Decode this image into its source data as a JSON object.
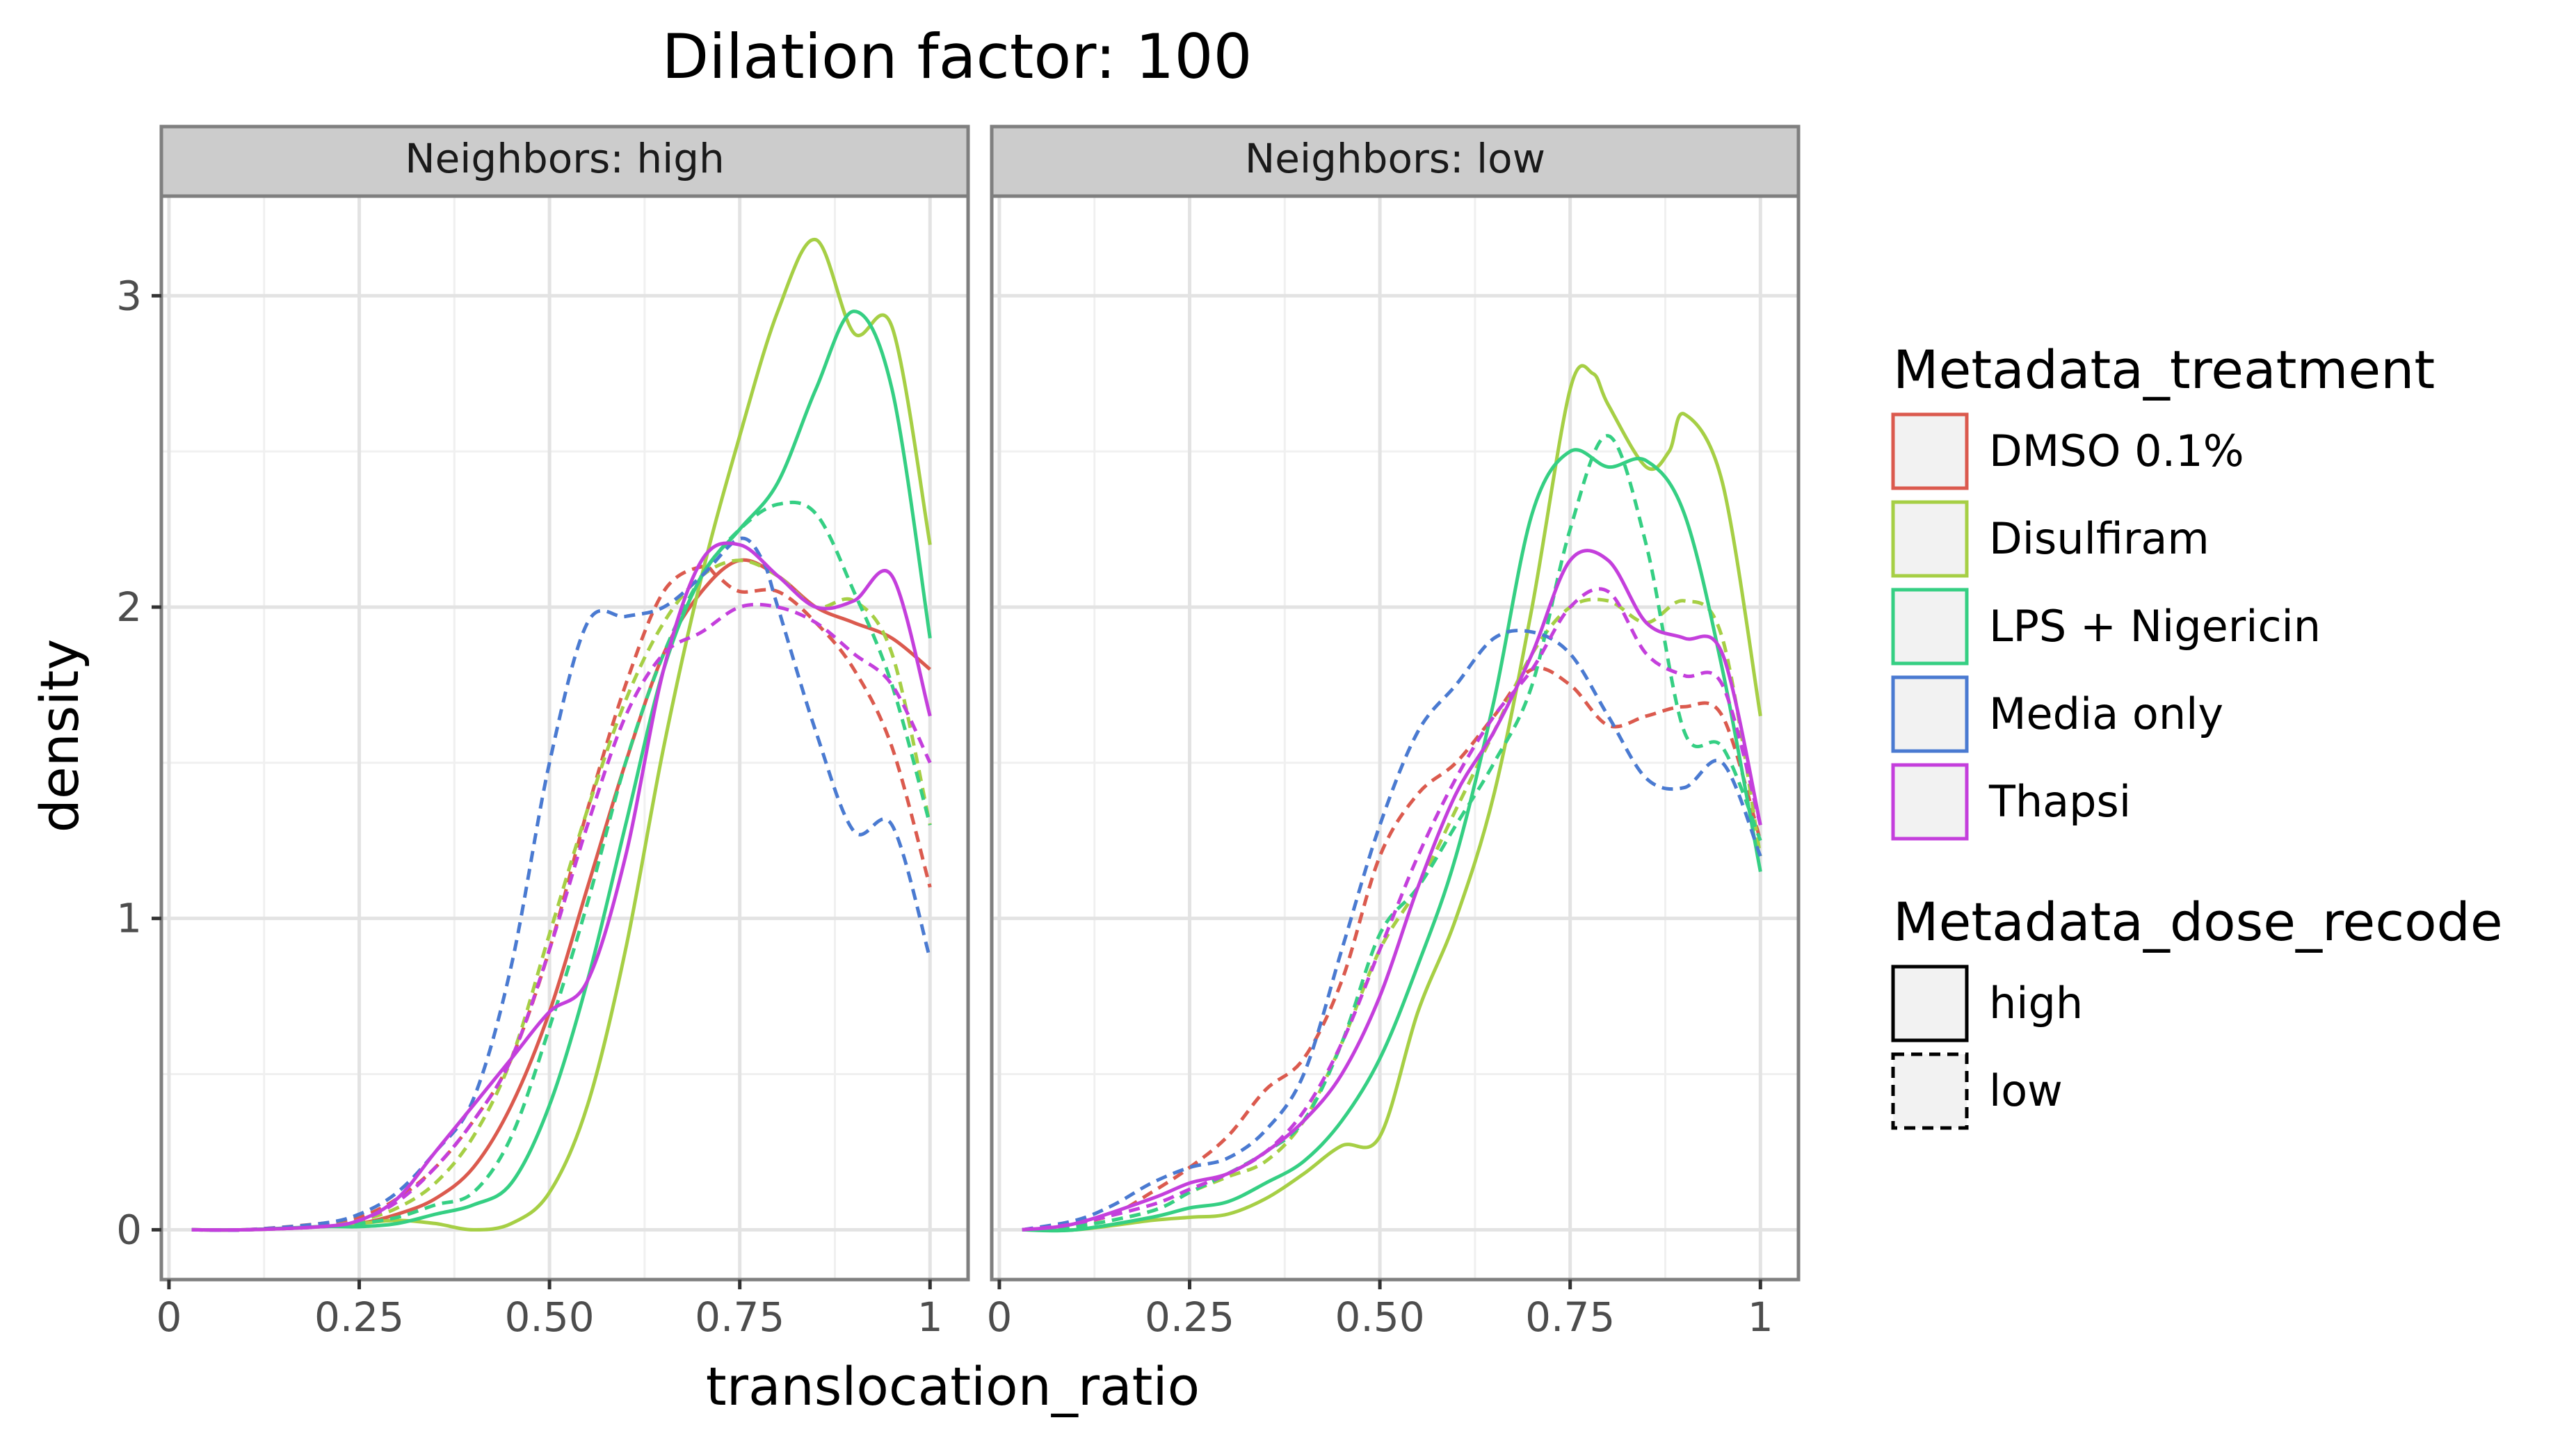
{
  "title": "Dilation factor: 100",
  "chart_data": {
    "type": "line",
    "title": "Dilation factor: 100",
    "xlabel": "translocation_ratio",
    "ylabel": "density",
    "xlim": [
      -0.01,
      1.05
    ],
    "ylim": [
      -0.16,
      3.32
    ],
    "x_ticks": [
      0,
      0.25,
      0.5,
      0.75,
      1
    ],
    "x_tick_labels": [
      "0",
      "0.25",
      "0.50",
      "0.75",
      "1"
    ],
    "y_ticks": [
      0,
      1,
      2,
      3
    ],
    "y_tick_labels": [
      "0",
      "1",
      "2",
      "3"
    ],
    "grid": true,
    "legend_position": "right",
    "facets": [
      "Neighbors: high",
      "Neighbors: low"
    ],
    "legend": {
      "color_title": "Metadata_treatment",
      "color_entries": [
        {
          "label": "DMSO 0.1%",
          "color": "#db5a4e"
        },
        {
          "label": "Disulfiram",
          "color": "#a6cf45"
        },
        {
          "label": "LPS + Nigericin",
          "color": "#35cf83"
        },
        {
          "label": "Media only",
          "color": "#4a7ad1"
        },
        {
          "label": "Thapsi",
          "color": "#c43fdc"
        }
      ],
      "linetype_title": "Metadata_dose_recode",
      "linetype_entries": [
        {
          "label": "high",
          "dash": "solid"
        },
        {
          "label": "low",
          "dash": "dashed"
        }
      ]
    },
    "panels": [
      {
        "facet": "Neighbors: high",
        "series": [
          {
            "treatment": "DMSO 0.1%",
            "dose": "high",
            "x": [
              0.03,
              0.1,
              0.2,
              0.25,
              0.3,
              0.35,
              0.4,
              0.45,
              0.5,
              0.55,
              0.6,
              0.65,
              0.7,
              0.75,
              0.8,
              0.85,
              0.9,
              0.95,
              1.0
            ],
            "y": [
              0,
              0,
              0.01,
              0.02,
              0.05,
              0.1,
              0.2,
              0.4,
              0.7,
              1.1,
              1.5,
              1.85,
              2.05,
              2.15,
              2.1,
              2.0,
              1.95,
              1.9,
              1.8
            ]
          },
          {
            "treatment": "DMSO 0.1%",
            "dose": "low",
            "x": [
              0.03,
              0.1,
              0.2,
              0.25,
              0.3,
              0.35,
              0.4,
              0.45,
              0.5,
              0.55,
              0.6,
              0.65,
              0.7,
              0.72,
              0.75,
              0.8,
              0.85,
              0.9,
              0.95,
              1.0
            ],
            "y": [
              0,
              0,
              0.02,
              0.04,
              0.1,
              0.2,
              0.35,
              0.55,
              0.9,
              1.35,
              1.75,
              2.05,
              2.13,
              2.1,
              2.05,
              2.05,
              1.95,
              1.8,
              1.55,
              1.1
            ]
          },
          {
            "treatment": "Disulfiram",
            "dose": "high",
            "x": [
              0.03,
              0.1,
              0.2,
              0.25,
              0.3,
              0.35,
              0.4,
              0.45,
              0.5,
              0.55,
              0.6,
              0.65,
              0.7,
              0.75,
              0.8,
              0.85,
              0.9,
              0.95,
              1.0
            ],
            "y": [
              0,
              0,
              0.01,
              0.02,
              0.03,
              0.02,
              0.0,
              0.02,
              0.12,
              0.4,
              0.9,
              1.55,
              2.1,
              2.55,
              2.95,
              3.18,
              2.88,
              2.9,
              2.2
            ]
          },
          {
            "treatment": "Disulfiram",
            "dose": "low",
            "x": [
              0.03,
              0.1,
              0.2,
              0.25,
              0.3,
              0.35,
              0.4,
              0.45,
              0.5,
              0.55,
              0.6,
              0.65,
              0.7,
              0.75,
              0.8,
              0.85,
              0.9,
              0.95,
              1.0
            ],
            "y": [
              0,
              0,
              0.01,
              0.03,
              0.07,
              0.15,
              0.3,
              0.55,
              0.95,
              1.35,
              1.7,
              1.95,
              2.1,
              2.15,
              2.1,
              2.0,
              2.02,
              1.85,
              1.3
            ]
          },
          {
            "treatment": "LPS + Nigericin",
            "dose": "high",
            "x": [
              0.03,
              0.1,
              0.2,
              0.25,
              0.3,
              0.35,
              0.4,
              0.45,
              0.5,
              0.55,
              0.6,
              0.65,
              0.7,
              0.75,
              0.8,
              0.85,
              0.9,
              0.95,
              1.0
            ],
            "y": [
              0,
              0,
              0.01,
              0.01,
              0.02,
              0.05,
              0.08,
              0.15,
              0.4,
              0.8,
              1.3,
              1.8,
              2.1,
              2.25,
              2.4,
              2.7,
              2.95,
              2.7,
              1.9
            ]
          },
          {
            "treatment": "LPS + Nigericin",
            "dose": "low",
            "x": [
              0.03,
              0.1,
              0.2,
              0.25,
              0.3,
              0.35,
              0.4,
              0.45,
              0.5,
              0.55,
              0.6,
              0.65,
              0.7,
              0.75,
              0.8,
              0.85,
              0.9,
              0.95,
              1.0
            ],
            "y": [
              0,
              0,
              0.01,
              0.02,
              0.04,
              0.08,
              0.12,
              0.3,
              0.65,
              1.05,
              1.5,
              1.85,
              2.1,
              2.25,
              2.33,
              2.3,
              2.05,
              1.75,
              1.3
            ]
          },
          {
            "treatment": "Media only",
            "dose": "low",
            "x": [
              0.03,
              0.1,
              0.2,
              0.25,
              0.3,
              0.35,
              0.4,
              0.45,
              0.5,
              0.55,
              0.6,
              0.65,
              0.7,
              0.75,
              0.78,
              0.8,
              0.85,
              0.9,
              0.95,
              1.0
            ],
            "y": [
              0,
              0,
              0.02,
              0.05,
              0.12,
              0.25,
              0.42,
              0.85,
              1.5,
              1.95,
              1.97,
              2.0,
              2.1,
              2.22,
              2.15,
              2.0,
              1.6,
              1.28,
              1.3,
              0.87
            ]
          },
          {
            "treatment": "Thapsi",
            "dose": "high",
            "x": [
              0.03,
              0.1,
              0.2,
              0.25,
              0.3,
              0.35,
              0.4,
              0.45,
              0.5,
              0.55,
              0.6,
              0.65,
              0.7,
              0.75,
              0.8,
              0.85,
              0.9,
              0.95,
              1.0
            ],
            "y": [
              0,
              0,
              0.01,
              0.03,
              0.1,
              0.25,
              0.4,
              0.55,
              0.7,
              0.8,
              1.2,
              1.8,
              2.15,
              2.2,
              2.1,
              2.0,
              2.02,
              2.1,
              1.65
            ]
          },
          {
            "treatment": "Thapsi",
            "dose": "low",
            "x": [
              0.03,
              0.1,
              0.2,
              0.25,
              0.3,
              0.35,
              0.4,
              0.45,
              0.5,
              0.55,
              0.6,
              0.65,
              0.7,
              0.75,
              0.8,
              0.85,
              0.9,
              0.95,
              1.0
            ],
            "y": [
              0,
              0,
              0.01,
              0.03,
              0.09,
              0.2,
              0.35,
              0.55,
              0.9,
              1.3,
              1.65,
              1.85,
              1.92,
              2.0,
              2.0,
              1.95,
              1.85,
              1.75,
              1.5
            ]
          }
        ]
      },
      {
        "facet": "Neighbors: low",
        "series": [
          {
            "treatment": "DMSO 0.1%",
            "dose": "low",
            "x": [
              0.03,
              0.1,
              0.15,
              0.2,
              0.25,
              0.3,
              0.35,
              0.4,
              0.45,
              0.5,
              0.55,
              0.6,
              0.65,
              0.7,
              0.75,
              0.8,
              0.85,
              0.9,
              0.95,
              1.0
            ],
            "y": [
              0,
              0.02,
              0.05,
              0.12,
              0.2,
              0.3,
              0.45,
              0.55,
              0.8,
              1.2,
              1.4,
              1.5,
              1.65,
              1.8,
              1.75,
              1.62,
              1.65,
              1.68,
              1.65,
              1.25
            ]
          },
          {
            "treatment": "Disulfiram",
            "dose": "high",
            "x": [
              0.03,
              0.1,
              0.2,
              0.25,
              0.3,
              0.35,
              0.4,
              0.45,
              0.5,
              0.55,
              0.6,
              0.65,
              0.7,
              0.75,
              0.78,
              0.8,
              0.85,
              0.88,
              0.9,
              0.95,
              1.0
            ],
            "y": [
              0,
              0,
              0.03,
              0.04,
              0.05,
              0.1,
              0.18,
              0.27,
              0.3,
              0.7,
              1.0,
              1.4,
              2.0,
              2.7,
              2.75,
              2.65,
              2.45,
              2.5,
              2.62,
              2.4,
              1.65
            ]
          },
          {
            "treatment": "Disulfiram",
            "dose": "low",
            "x": [
              0.03,
              0.1,
              0.2,
              0.25,
              0.3,
              0.35,
              0.4,
              0.45,
              0.5,
              0.55,
              0.6,
              0.65,
              0.7,
              0.75,
              0.8,
              0.85,
              0.9,
              0.95,
              1.0
            ],
            "y": [
              0,
              0.01,
              0.06,
              0.12,
              0.17,
              0.22,
              0.35,
              0.6,
              0.9,
              1.1,
              1.35,
              1.6,
              1.85,
              2.0,
              2.02,
              1.95,
              2.02,
              1.9,
              1.2
            ]
          },
          {
            "treatment": "LPS + Nigericin",
            "dose": "high",
            "x": [
              0.03,
              0.1,
              0.2,
              0.25,
              0.3,
              0.35,
              0.4,
              0.45,
              0.5,
              0.55,
              0.6,
              0.65,
              0.7,
              0.75,
              0.8,
              0.85,
              0.9,
              0.95,
              1.0
            ],
            "y": [
              0,
              0,
              0.04,
              0.07,
              0.09,
              0.15,
              0.22,
              0.35,
              0.55,
              0.85,
              1.2,
              1.7,
              2.3,
              2.5,
              2.45,
              2.47,
              2.3,
              1.8,
              1.15
            ]
          },
          {
            "treatment": "LPS + Nigericin",
            "dose": "low",
            "x": [
              0.03,
              0.1,
              0.2,
              0.25,
              0.3,
              0.35,
              0.4,
              0.45,
              0.5,
              0.55,
              0.6,
              0.65,
              0.7,
              0.75,
              0.8,
              0.85,
              0.9,
              0.95,
              1.0
            ],
            "y": [
              0,
              0.01,
              0.06,
              0.12,
              0.18,
              0.25,
              0.35,
              0.6,
              0.95,
              1.1,
              1.3,
              1.5,
              1.75,
              2.25,
              2.55,
              2.2,
              1.6,
              1.55,
              1.25
            ]
          },
          {
            "treatment": "Media only",
            "dose": "low",
            "x": [
              0.03,
              0.1,
              0.15,
              0.2,
              0.25,
              0.3,
              0.35,
              0.4,
              0.45,
              0.5,
              0.55,
              0.6,
              0.65,
              0.7,
              0.75,
              0.8,
              0.85,
              0.9,
              0.95,
              1.0
            ],
            "y": [
              0,
              0.03,
              0.08,
              0.15,
              0.2,
              0.23,
              0.32,
              0.5,
              0.9,
              1.3,
              1.6,
              1.75,
              1.9,
              1.92,
              1.85,
              1.65,
              1.45,
              1.42,
              1.5,
              1.2
            ]
          },
          {
            "treatment": "Thapsi",
            "dose": "high",
            "x": [
              0.03,
              0.1,
              0.2,
              0.25,
              0.3,
              0.35,
              0.4,
              0.45,
              0.5,
              0.55,
              0.6,
              0.65,
              0.7,
              0.75,
              0.8,
              0.85,
              0.9,
              0.95,
              1.0
            ],
            "y": [
              0,
              0.02,
              0.1,
              0.15,
              0.18,
              0.25,
              0.35,
              0.5,
              0.75,
              1.1,
              1.4,
              1.6,
              1.85,
              2.15,
              2.15,
              1.95,
              1.9,
              1.85,
              1.3
            ]
          },
          {
            "treatment": "Thapsi",
            "dose": "low",
            "x": [
              0.03,
              0.1,
              0.2,
              0.25,
              0.3,
              0.35,
              0.4,
              0.45,
              0.5,
              0.55,
              0.6,
              0.65,
              0.7,
              0.75,
              0.8,
              0.85,
              0.9,
              0.95,
              1.0
            ],
            "y": [
              0,
              0.02,
              0.08,
              0.13,
              0.18,
              0.25,
              0.38,
              0.6,
              0.9,
              1.2,
              1.45,
              1.65,
              1.8,
              2.0,
              2.05,
              1.85,
              1.78,
              1.75,
              1.3
            ]
          }
        ]
      }
    ]
  }
}
